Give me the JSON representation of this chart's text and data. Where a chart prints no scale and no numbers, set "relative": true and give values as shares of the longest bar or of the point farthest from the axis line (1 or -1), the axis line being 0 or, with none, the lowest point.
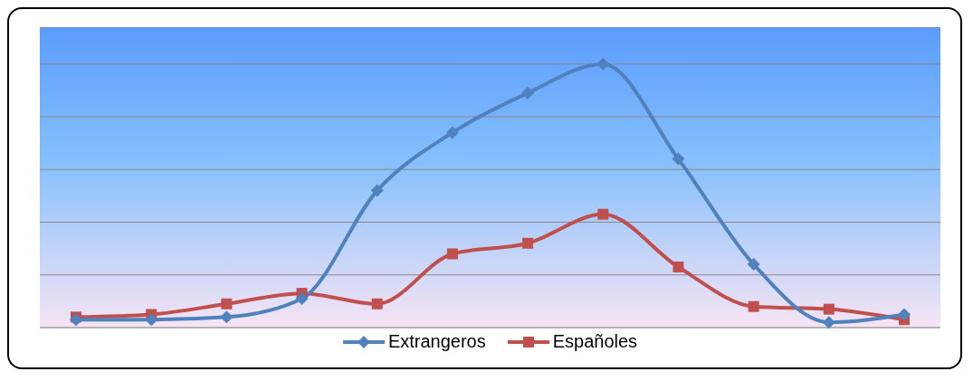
{
  "chart_data": {
    "type": "line",
    "relative": true,
    "categories": [
      null,
      null,
      null,
      null,
      null,
      null,
      null,
      null,
      null,
      null,
      null,
      null
    ],
    "series": [
      {
        "name": "Extrangeros",
        "color": "#4f81bd",
        "marker": "diamond",
        "values": [
          0.03,
          0.03,
          0.04,
          0.11,
          0.52,
          0.74,
          0.89,
          1,
          0.64,
          0.24,
          0.02,
          0.05
        ]
      },
      {
        "name": "Españoles",
        "color": "#c0504d",
        "marker": "square",
        "values": [
          0.04,
          0.05,
          0.09,
          0.13,
          0.09,
          0.28,
          0.32,
          0.43,
          0.23,
          0.08,
          0.07,
          0.03
        ]
      }
    ],
    "grid": "y",
    "legend": "bottom"
  }
}
